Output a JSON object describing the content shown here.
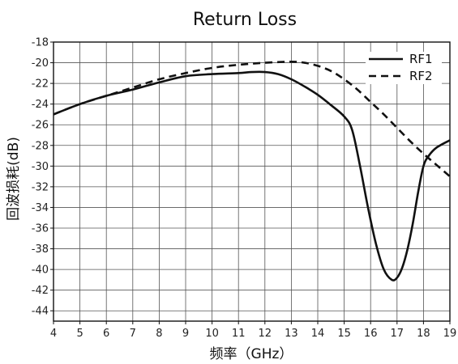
{
  "chart_data": {
    "type": "line",
    "title": "Return Loss",
    "xlabel": "频率（GHz）",
    "ylabel": "回波损耗(dB)",
    "xlim": [
      4,
      19
    ],
    "ylim": [
      -45,
      -18
    ],
    "xticks": [
      4,
      5,
      6,
      7,
      8,
      9,
      10,
      11,
      12,
      13,
      14,
      15,
      16,
      17,
      18,
      19
    ],
    "yticks": [
      -18,
      -20,
      -22,
      -24,
      -26,
      -28,
      -30,
      -32,
      -34,
      -36,
      -38,
      -40,
      -42,
      -44
    ],
    "grid": true,
    "legend_position": "top-right",
    "series": [
      {
        "name": "RF1",
        "style": "solid",
        "color": "#111111",
        "x": [
          4,
          5,
          6,
          7,
          8,
          9,
          10,
          11,
          11.5,
          12,
          12.5,
          13,
          13.5,
          14,
          14.5,
          15,
          15.3,
          15.6,
          15.9,
          16.2,
          16.5,
          16.8,
          17.0,
          17.2,
          17.4,
          17.6,
          17.8,
          18.0,
          18.2,
          18.5,
          19
        ],
        "y": [
          -25,
          -24,
          -23.2,
          -22.6,
          -21.9,
          -21.3,
          -21.1,
          -21.0,
          -20.9,
          -20.9,
          -21.1,
          -21.6,
          -22.3,
          -23.1,
          -24.1,
          -25.2,
          -26.5,
          -30.0,
          -34.0,
          -37.5,
          -40.0,
          -41.0,
          -40.8,
          -39.8,
          -38.0,
          -35.5,
          -32.5,
          -30.0,
          -29.0,
          -28.2,
          -27.5
        ]
      },
      {
        "name": "RF2",
        "style": "dashed",
        "color": "#111111",
        "x": [
          4,
          5,
          6,
          7,
          8,
          9,
          10,
          11,
          12,
          13,
          13.5,
          14,
          14.5,
          15,
          15.5,
          16,
          16.5,
          17,
          17.5,
          18,
          18.5,
          19
        ],
        "y": [
          -25,
          -24,
          -23.2,
          -22.4,
          -21.6,
          -21.0,
          -20.5,
          -20.2,
          -20.0,
          -19.9,
          -20.0,
          -20.3,
          -20.8,
          -21.6,
          -22.6,
          -23.8,
          -25.0,
          -26.3,
          -27.6,
          -28.8,
          -29.9,
          -31.0
        ]
      }
    ]
  }
}
